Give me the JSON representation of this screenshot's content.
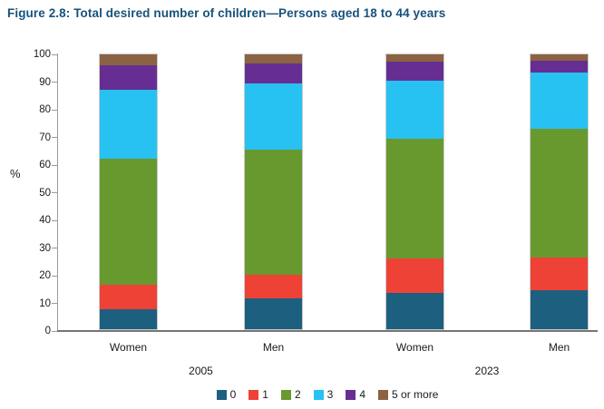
{
  "title": "Figure 2.8: Total desired number of children—Persons aged 18 to 44 years",
  "chart_data": {
    "type": "bar",
    "stacked": true,
    "title": "Figure 2.8: Total desired number of children—Persons aged 18 to 44 years",
    "xlabel": "",
    "ylabel": "%",
    "ylim": [
      0,
      100
    ],
    "yticks": [
      0,
      10,
      20,
      30,
      40,
      50,
      60,
      70,
      80,
      90,
      100
    ],
    "grid": false,
    "legend_position": "bottom",
    "categories": [
      "Women",
      "Men",
      "Women",
      "Men"
    ],
    "group_labels": [
      "2005",
      "2023"
    ],
    "series": [
      {
        "name": "0",
        "color": "#1d5f7f",
        "values": [
          7.3,
          11.2,
          13.3,
          14.3
        ]
      },
      {
        "name": "1",
        "color": "#ee4237",
        "values": [
          8.8,
          8.5,
          12.6,
          11.8
        ]
      },
      {
        "name": "2",
        "color": "#68992f",
        "values": [
          45.9,
          45.6,
          43.5,
          46.7
        ]
      },
      {
        "name": "3",
        "color": "#27c2f2",
        "values": [
          25.1,
          24.0,
          21.0,
          20.6
        ]
      },
      {
        "name": "4",
        "color": "#662e92",
        "values": [
          9.1,
          7.4,
          6.9,
          4.2
        ]
      },
      {
        "name": "5 or more",
        "color": "#8b6342",
        "values": [
          3.8,
          3.3,
          2.7,
          2.4
        ]
      }
    ],
    "axis_color": "#9a9a9a",
    "baseline_color": "#767676",
    "bar_border_color": "#cbcbcb",
    "title_color": "#16527c"
  }
}
